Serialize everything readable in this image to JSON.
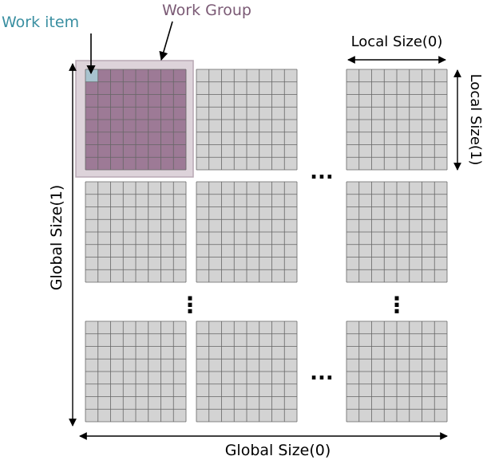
{
  "labels": {
    "work_item": "Work item",
    "work_group": "Work Group",
    "local_size_0": "Local Size(0)",
    "local_size_1": "Local Size(1)",
    "global_size_0": "Global Size(0)",
    "global_size_1": "Global Size(1)",
    "ellipsis_h": "...",
    "ellipsis_v": "⋮"
  },
  "grid": {
    "block_rows": 3,
    "block_cols": 3,
    "cells_per_block": 8,
    "highlighted_block": [
      0,
      0
    ],
    "highlighted_cell": [
      0,
      0
    ]
  },
  "colors": {
    "cell_fill": "#d3d3d3",
    "cell_line": "#666666",
    "workgroup_fill": "#9d7a96",
    "workgroup_halo": "#ddd3da",
    "workitem_fill": "#a8c3cf",
    "work_item_label": "#3a8fa1",
    "work_group_label": "#7b5a75",
    "text": "#000000"
  }
}
